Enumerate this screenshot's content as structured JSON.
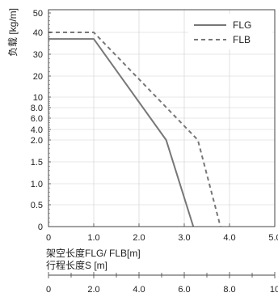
{
  "chart_data": {
    "type": "line",
    "ylabel": "负载 [kg/m]",
    "xlabel": "架空长度FLG/ FLB[m]",
    "x2label": "行程长度S [m]",
    "y_tick_labels": [
      "0",
      "0.5",
      "1.0",
      "1.5",
      "2.0",
      "4.0",
      "6.0",
      "8.0",
      "10",
      "20",
      "30",
      "40",
      "50"
    ],
    "x_ticks": [
      0,
      1.0,
      2.0,
      3.0,
      4.0,
      5.0
    ],
    "x_tick_labels": [
      "0",
      "1.0",
      "2.0",
      "3.0",
      "4.0",
      "5.0"
    ],
    "x2_ticks": [
      0,
      2.0,
      4.0,
      6.0,
      8.0,
      10
    ],
    "x2_tick_labels": [
      "0",
      "2.0",
      "4.0",
      "6.0",
      "8.0",
      "10"
    ],
    "xlim": [
      0,
      5.0
    ],
    "x2lim": [
      0,
      10
    ],
    "grid": true,
    "legend_position": "top-right",
    "series": [
      {
        "name": "FLG",
        "style": "solid",
        "color": "#777777",
        "x": [
          0,
          1.0,
          2.6,
          3.2
        ],
        "y": [
          37,
          37,
          2.0,
          0
        ]
      },
      {
        "name": "FLB",
        "style": "dashed",
        "color": "#777777",
        "x": [
          0,
          1.0,
          3.3,
          3.8
        ],
        "y": [
          40,
          40,
          2.0,
          0
        ]
      }
    ]
  }
}
